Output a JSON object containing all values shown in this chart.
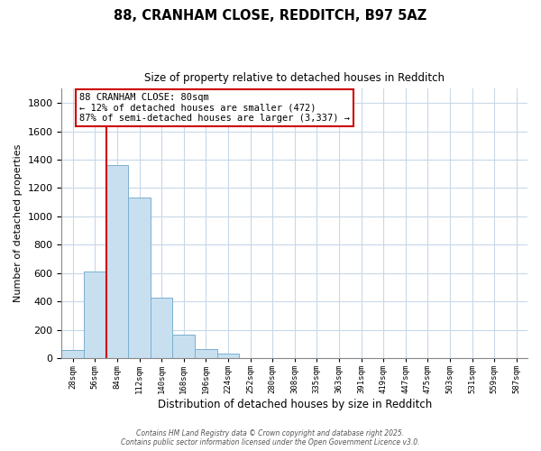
{
  "title1": "88, CRANHAM CLOSE, REDDITCH, B97 5AZ",
  "title2": "Size of property relative to detached houses in Redditch",
  "bar_values": [
    60,
    610,
    1360,
    1130,
    430,
    170,
    65,
    35,
    0,
    0,
    0,
    0,
    0,
    0,
    0,
    0,
    0,
    0,
    0,
    0,
    0
  ],
  "bar_labels": [
    "28sqm",
    "56sqm",
    "84sqm",
    "112sqm",
    "140sqm",
    "168sqm",
    "196sqm",
    "224sqm",
    "252sqm",
    "280sqm",
    "308sqm",
    "335sqm",
    "363sqm",
    "391sqm",
    "419sqm",
    "447sqm",
    "475sqm",
    "503sqm",
    "531sqm",
    "559sqm",
    "587sqm"
  ],
  "bar_color": "#c8dff0",
  "bar_edge_color": "#7ab0d0",
  "vline_x_idx": 2,
  "vline_color": "#cc0000",
  "xlabel": "Distribution of detached houses by size in Redditch",
  "ylabel": "Number of detached properties",
  "ylim": [
    0,
    1900
  ],
  "yticks": [
    0,
    200,
    400,
    600,
    800,
    1000,
    1200,
    1400,
    1600,
    1800
  ],
  "annotation_title": "88 CRANHAM CLOSE: 80sqm",
  "annotation_line1": "← 12% of detached houses are smaller (472)",
  "annotation_line2": "87% of semi-detached houses are larger (3,337) →",
  "annotation_box_color": "#ffffff",
  "annotation_box_edge": "#cc0000",
  "footer1": "Contains HM Land Registry data © Crown copyright and database right 2025.",
  "footer2": "Contains public sector information licensed under the Open Government Licence v3.0.",
  "background_color": "#ffffff",
  "grid_color": "#c8d8e8"
}
